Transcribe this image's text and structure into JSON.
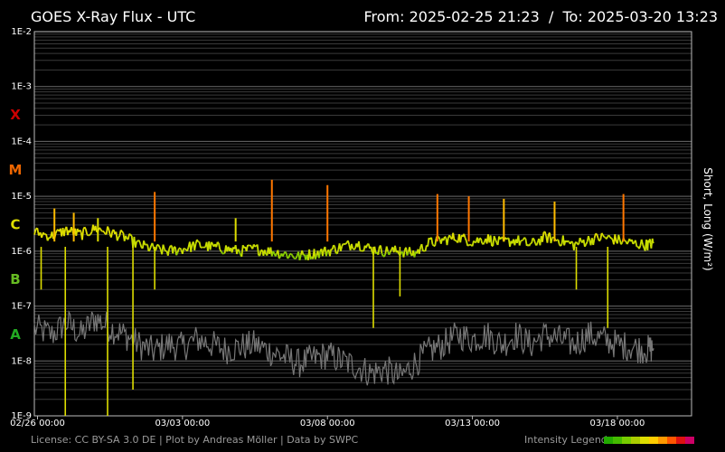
{
  "header": {
    "title": "GOES X-Ray Flux - UTC",
    "range": "From: 2025-02-25 21:23  /  To: 2025-03-20 13:23"
  },
  "footer": {
    "license": "License: CC BY-SA 3.0 DE | Plot by Andreas Möller | Data by SWPC",
    "legend_label": "Intensity Legend",
    "legend_colors": [
      "#22aa00",
      "#44bb00",
      "#77cc00",
      "#aacc00",
      "#dddd00",
      "#ffcc00",
      "#ff9900",
      "#ff5500",
      "#dd1111",
      "#cc0066"
    ]
  },
  "chart_data": {
    "type": "line",
    "ylabel": "Short, Long (W/m²)",
    "y_scale": "log",
    "ylim": [
      1e-09,
      0.01
    ],
    "y_ticks": [
      "1E-2",
      "1E-3",
      "1E-4",
      "1E-5",
      "1E-6",
      "1E-7",
      "1E-8",
      "1E-9"
    ],
    "flare_classes": [
      {
        "label": "X",
        "color": "#cc0000",
        "flux": 0.000316
      },
      {
        "label": "M",
        "color": "#ee6600",
        "flux": 3.16e-05
      },
      {
        "label": "C",
        "color": "#dddd00",
        "flux": 3.16e-06
      },
      {
        "label": "B",
        "color": "#66bb22",
        "flux": 3.16e-07
      },
      {
        "label": "A",
        "color": "#22aa22",
        "flux": 3.16e-08
      }
    ],
    "xlim": [
      "2025-02-25 21:23",
      "2025-03-20 13:23"
    ],
    "x_ticks": [
      {
        "label": "02/26 00:00",
        "t": "2025-02-26 00:00"
      },
      {
        "label": "03/03 00:00",
        "t": "2025-03-03 00:00"
      },
      {
        "label": "03/08 00:00",
        "t": "2025-03-08 00:00"
      },
      {
        "label": "03/13 00:00",
        "t": "2025-03-13 00:00"
      },
      {
        "label": "03/18 00:00",
        "t": "2025-03-18 00:00"
      }
    ],
    "series": [
      {
        "name": "Long",
        "color": "dynamic",
        "points": [
          [
            "2025-02-25 21:23",
            2.2e-06
          ],
          [
            "2025-02-26 12:00",
            1.9e-06
          ],
          [
            "2025-02-27 00:00",
            2.4e-06
          ],
          [
            "2025-02-27 12:00",
            2e-06
          ],
          [
            "2025-02-28 00:00",
            2.6e-06
          ],
          [
            "2025-02-28 12:00",
            2.2e-06
          ],
          [
            "2025-03-01 00:00",
            1.8e-06
          ],
          [
            "2025-03-01 12:00",
            1.3e-06
          ],
          [
            "2025-03-02 00:00",
            1.1e-06
          ],
          [
            "2025-03-02 12:00",
            1e-06
          ],
          [
            "2025-03-03 00:00",
            1.1e-06
          ],
          [
            "2025-03-03 12:00",
            1.3e-06
          ],
          [
            "2025-03-04 00:00",
            1.2e-06
          ],
          [
            "2025-03-04 12:00",
            1.1e-06
          ],
          [
            "2025-03-05 00:00",
            1e-06
          ],
          [
            "2025-03-05 12:00",
            1.1e-06
          ],
          [
            "2025-03-06 00:00",
            1e-06
          ],
          [
            "2025-03-06 12:00",
            9e-07
          ],
          [
            "2025-03-07 00:00",
            8e-07
          ],
          [
            "2025-03-07 12:00",
            9e-07
          ],
          [
            "2025-03-08 00:00",
            1e-06
          ],
          [
            "2025-03-08 12:00",
            1.2e-06
          ],
          [
            "2025-03-09 00:00",
            1.4e-06
          ],
          [
            "2025-03-09 12:00",
            1.1e-06
          ],
          [
            "2025-03-10 00:00",
            1e-06
          ],
          [
            "2025-03-10 12:00",
            1e-06
          ],
          [
            "2025-03-11 00:00",
            9e-07
          ],
          [
            "2025-03-11 12:00",
            1.4e-06
          ],
          [
            "2025-03-12 00:00",
            1.6e-06
          ],
          [
            "2025-03-12 12:00",
            1.8e-06
          ],
          [
            "2025-03-13 00:00",
            1.5e-06
          ],
          [
            "2025-03-13 12:00",
            1.7e-06
          ],
          [
            "2025-03-14 00:00",
            1.4e-06
          ],
          [
            "2025-03-14 12:00",
            1.6e-06
          ],
          [
            "2025-03-15 00:00",
            1.3e-06
          ],
          [
            "2025-03-15 12:00",
            1.8e-06
          ],
          [
            "2025-03-16 00:00",
            1.6e-06
          ],
          [
            "2025-03-16 12:00",
            1.3e-06
          ],
          [
            "2025-03-17 00:00",
            1.6e-06
          ],
          [
            "2025-03-17 12:00",
            1.8e-06
          ],
          [
            "2025-03-18 00:00",
            1.6e-06
          ],
          [
            "2025-03-18 12:00",
            1.4e-06
          ],
          [
            "2025-03-19 00:00",
            1.3e-06
          ],
          [
            "2025-03-19 06:00",
            1.4e-06
          ]
        ],
        "peaks": [
          [
            "2025-02-26 14:00",
            6e-06
          ],
          [
            "2025-02-27 06:00",
            5e-06
          ],
          [
            "2025-02-28 02:00",
            4e-06
          ],
          [
            "2025-03-02 01:00",
            1.2e-05
          ],
          [
            "2025-03-04 20:00",
            4e-06
          ],
          [
            "2025-03-06 02:00",
            2e-05
          ],
          [
            "2025-03-08 00:00",
            1.6e-05
          ],
          [
            "2025-03-11 19:00",
            1.1e-05
          ],
          [
            "2025-03-12 21:00",
            1e-05
          ],
          [
            "2025-03-14 02:00",
            9e-06
          ],
          [
            "2025-03-15 20:00",
            8e-06
          ],
          [
            "2025-03-18 05:00",
            1.1e-05
          ]
        ],
        "dips": [
          [
            "2025-02-26 03:00",
            2e-07
          ],
          [
            "2025-02-26 23:00",
            1e-09
          ],
          [
            "2025-02-28 10:00",
            1e-09
          ],
          [
            "2025-03-01 07:00",
            3e-09
          ],
          [
            "2025-03-02 01:00",
            2e-07
          ],
          [
            "2025-03-09 14:00",
            4e-08
          ],
          [
            "2025-03-10 12:00",
            1.5e-07
          ],
          [
            "2025-03-16 14:00",
            2e-07
          ],
          [
            "2025-03-17 16:00",
            4e-08
          ]
        ]
      },
      {
        "name": "Short",
        "color": "#777777",
        "points": [
          [
            "2025-02-25 21:23",
            4e-08
          ],
          [
            "2025-02-26 12:00",
            3e-08
          ],
          [
            "2025-02-27 00:00",
            5e-08
          ],
          [
            "2025-02-27 12:00",
            3e-08
          ],
          [
            "2025-02-28 00:00",
            6e-08
          ],
          [
            "2025-02-28 12:00",
            4e-08
          ],
          [
            "2025-03-01 00:00",
            3e-08
          ],
          [
            "2025-03-01 12:00",
            2e-08
          ],
          [
            "2025-03-02 00:00",
            1.5e-08
          ],
          [
            "2025-03-02 12:00",
            2e-08
          ],
          [
            "2025-03-03 00:00",
            1.8e-08
          ],
          [
            "2025-03-03 12:00",
            2.5e-08
          ],
          [
            "2025-03-04 00:00",
            2e-08
          ],
          [
            "2025-03-04 12:00",
            1.6e-08
          ],
          [
            "2025-03-05 00:00",
            1.8e-08
          ],
          [
            "2025-03-05 12:00",
            2e-08
          ],
          [
            "2025-03-06 00:00",
            1.5e-08
          ],
          [
            "2025-03-06 12:00",
            1.2e-08
          ],
          [
            "2025-03-07 00:00",
            9e-09
          ],
          [
            "2025-03-07 12:00",
            1.1e-08
          ],
          [
            "2025-03-08 00:00",
            1.3e-08
          ],
          [
            "2025-03-08 12:00",
            1e-08
          ],
          [
            "2025-03-09 00:00",
            8e-09
          ],
          [
            "2025-03-09 12:00",
            6e-09
          ],
          [
            "2025-03-10 00:00",
            7e-09
          ],
          [
            "2025-03-10 12:00",
            5e-09
          ],
          [
            "2025-03-11 00:00",
            9e-09
          ],
          [
            "2025-03-11 12:00",
            1.5e-08
          ],
          [
            "2025-03-12 00:00",
            2e-08
          ],
          [
            "2025-03-12 12:00",
            3e-08
          ],
          [
            "2025-03-13 00:00",
            2.5e-08
          ],
          [
            "2025-03-13 12:00",
            3e-08
          ],
          [
            "2025-03-14 00:00",
            2e-08
          ],
          [
            "2025-03-14 12:00",
            3e-08
          ],
          [
            "2025-03-15 00:00",
            2e-08
          ],
          [
            "2025-03-15 12:00",
            3e-08
          ],
          [
            "2025-03-16 00:00",
            2.5e-08
          ],
          [
            "2025-03-16 12:00",
            2e-08
          ],
          [
            "2025-03-17 00:00",
            3e-08
          ],
          [
            "2025-03-17 12:00",
            2.5e-08
          ],
          [
            "2025-03-18 00:00",
            2e-08
          ],
          [
            "2025-03-18 12:00",
            1.8e-08
          ],
          [
            "2025-03-19 00:00",
            1.6e-08
          ],
          [
            "2025-03-19 06:00",
            1.7e-08
          ]
        ]
      }
    ]
  }
}
